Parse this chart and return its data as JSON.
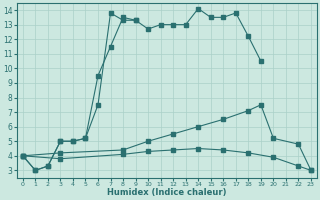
{
  "xlabel": "Humidex (Indice chaleur)",
  "ylabel": "",
  "bg_color": "#cce8e0",
  "grid_color": "#aad0c8",
  "line_color": "#2a7070",
  "xlim": [
    -0.5,
    23.5
  ],
  "ylim": [
    2.5,
    14.5
  ],
  "xticks": [
    0,
    1,
    2,
    3,
    4,
    5,
    6,
    7,
    8,
    9,
    10,
    11,
    12,
    13,
    14,
    15,
    16,
    17,
    18,
    19,
    20,
    21,
    22,
    23
  ],
  "yticks": [
    3,
    4,
    5,
    6,
    7,
    8,
    9,
    10,
    11,
    12,
    13,
    14
  ],
  "line1_x": [
    0,
    1,
    2,
    3,
    4,
    5,
    6,
    7,
    8,
    9,
    10,
    11,
    12,
    13,
    14,
    15,
    16,
    17,
    18,
    19
  ],
  "line1_y": [
    4.0,
    3.0,
    3.3,
    5.0,
    5.0,
    5.2,
    9.5,
    11.5,
    13.5,
    13.3,
    12.7,
    13.0,
    13.0,
    13.0,
    14.1,
    13.5,
    13.5,
    13.8,
    12.2,
    10.5
  ],
  "line2_x": [
    0,
    1,
    2,
    3,
    4,
    5,
    6,
    7,
    8,
    9
  ],
  "line2_y": [
    4.0,
    3.0,
    3.3,
    5.0,
    5.0,
    5.2,
    7.5,
    13.8,
    13.3,
    13.3
  ],
  "line3_x": [
    0,
    3,
    8,
    10,
    12,
    14,
    16,
    18,
    19,
    20,
    22,
    23
  ],
  "line3_y": [
    4.0,
    4.2,
    4.4,
    5.0,
    5.5,
    6.0,
    6.5,
    7.1,
    7.5,
    5.2,
    4.8,
    3.0
  ],
  "line4_x": [
    0,
    3,
    8,
    10,
    12,
    14,
    16,
    18,
    20,
    22,
    23
  ],
  "line4_y": [
    4.0,
    3.8,
    4.1,
    4.3,
    4.4,
    4.5,
    4.4,
    4.2,
    3.9,
    3.3,
    3.0
  ]
}
